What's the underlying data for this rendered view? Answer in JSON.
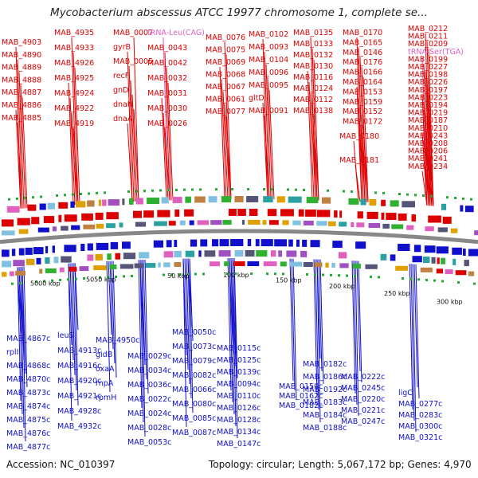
{
  "title": "Mycobacterium abscessus ATCC 19977 chromosome 1, complete se...",
  "accession": "Accession: NC_010397",
  "stats": "Topology: circular; Length: 5,067,172 bp; Genes: 4,970",
  "colors": {
    "forward": "#dd0000",
    "reverse": "#1010cc",
    "rna": "#e060c0",
    "backbone": "#888888"
  },
  "ticks": [
    "5000 kbp",
    "5050 kbp",
    "50 kbp",
    "100 kbp",
    "150 kbp",
    "200 kbp",
    "250 kbp",
    "300 kbp"
  ],
  "forward_labels": [
    "MAB_4903",
    "MAB_4890",
    "MAB_4889",
    "MAB_4888",
    "MAB_4887",
    "MAB_4886",
    "MAB_4885",
    "MAB_4935",
    "MAB_4933",
    "MAB_4926",
    "MAB_4925",
    "MAB_4924",
    "MAB_4922",
    "MAB_4919",
    "MAB_0007",
    "gyrB",
    "MAB_0005",
    "recF",
    "gnD",
    "dnaN",
    "dnaA",
    "tRNA-Leu(CAG)",
    "MAB_0043",
    "MAB_0042",
    "MAB_0032",
    "MAB_0031",
    "MAB_0030",
    "MAB_0026",
    "MAB_0076",
    "MAB_0075",
    "MAB_0069",
    "MAB_0068",
    "MAB_0067",
    "MAB_0061",
    "MAB_0077",
    "MAB_0102",
    "MAB_0093",
    "MAB_0104",
    "MAB_0096",
    "MAB_0095",
    "gltD",
    "MAB_0091",
    "MAB_0135",
    "MAB_0133",
    "MAB_0132",
    "MAB_0130",
    "MAB_0116",
    "MAB_0124",
    "MAB_0112",
    "MAB_0138",
    "MAB_0170",
    "MAB_0165",
    "MAB_0146",
    "MAB_0176",
    "MAB_0166",
    "MAB_0164",
    "MAB_0153",
    "MAB_0159",
    "MAB_0152",
    "MAB_0172",
    "MAB_0180",
    "MAB_0181",
    "MAB_0212",
    "MAB_0211",
    "MAB_0209",
    "tRNA-Ser(TGA)",
    "MAB_0199",
    "MAB_0227",
    "MAB_0198",
    "MAB_0226",
    "MAB_0197",
    "MAB_0223",
    "MAB_0194",
    "MAB_0219",
    "MAB_0187",
    "MAB_0210",
    "MAB_0243",
    "MAB_0208",
    "MAB_0206",
    "MAB_0241",
    "MAB_0234"
  ],
  "reverse_labels": [
    "MAB_4867c",
    "rplI",
    "MAB_4868c",
    "MAB_4870c",
    "MAB_4873c",
    "MAB_4874c",
    "MAB_4875c",
    "MAB_4876c",
    "MAB_4877c",
    "leuS",
    "MAB_4913c",
    "MAB_4916c",
    "MAB_4920c",
    "MAB_4921c",
    "MAB_4928c",
    "MAB_4932c",
    "MAB_4950c",
    "gidB",
    "oxaA",
    "rnpA",
    "rpmH",
    "MAB_0029c",
    "MAB_0034c",
    "MAB_0036c",
    "MAB_0022c",
    "MAB_0024c",
    "MAB_0028c",
    "MAB_0053c",
    "MAB_0050c",
    "MAB_0073c",
    "MAB_0079c",
    "MAB_0082c",
    "MAB_0066c",
    "MAB_0080c",
    "MAB_0085c",
    "MAB_0087c",
    "MAB_0115c",
    "MAB_0125c",
    "MAB_0139c",
    "MAB_0094c",
    "MAB_0110c",
    "MAB_0126c",
    "MAB_0128c",
    "MAB_0134c",
    "MAB_0147c",
    "MAB_0150c",
    "MAB_0162c",
    "MAB_0182c",
    "MAB_0186c",
    "MAB_0192c",
    "MAB_0183c",
    "MAB_0184c",
    "MAB_0188c",
    "MAB_0222c",
    "MAB_0245c",
    "MAB_0220c",
    "MAB_0221c",
    "MAB_0247c",
    "ligC",
    "MAB_0277c",
    "MAB_0283c",
    "MAB_0300c",
    "MAB_0321c"
  ]
}
